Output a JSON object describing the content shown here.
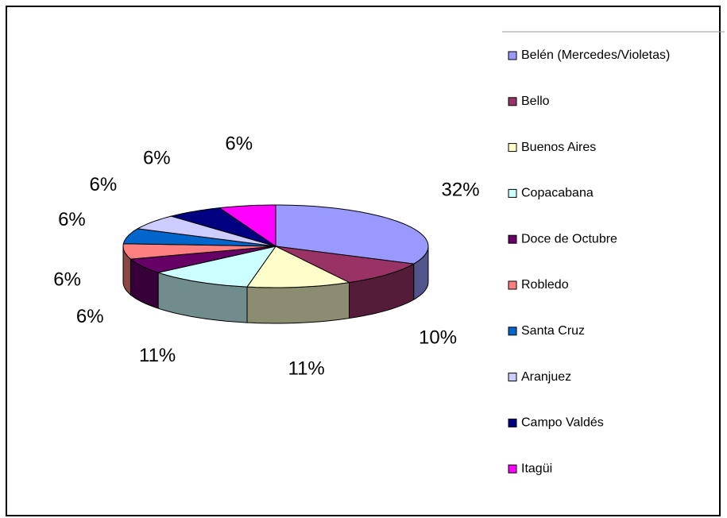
{
  "chart_data": {
    "type": "pie3d",
    "categories": [
      "Belén (Mercedes/Violetas)",
      "Bello",
      "Buenos Aires",
      "Copacabana",
      "Doce de Octubre",
      "Robledo",
      "Santa Cruz",
      "Aranjuez",
      "Campo Valdés",
      "Itagüi"
    ],
    "values": [
      32,
      10,
      11,
      11,
      6,
      6,
      6,
      6,
      6,
      6
    ],
    "value_labels": [
      "32%",
      "10%",
      "11%",
      "11%",
      "6%",
      "6%",
      "6%",
      "6%",
      "6%",
      "6%"
    ],
    "colors": [
      "#9999ff",
      "#993366",
      "#ffffcc",
      "#ccffff",
      "#660066",
      "#ff8080",
      "#0066cc",
      "#ccccff",
      "#000080",
      "#ff00ff"
    ],
    "legend": "right"
  }
}
